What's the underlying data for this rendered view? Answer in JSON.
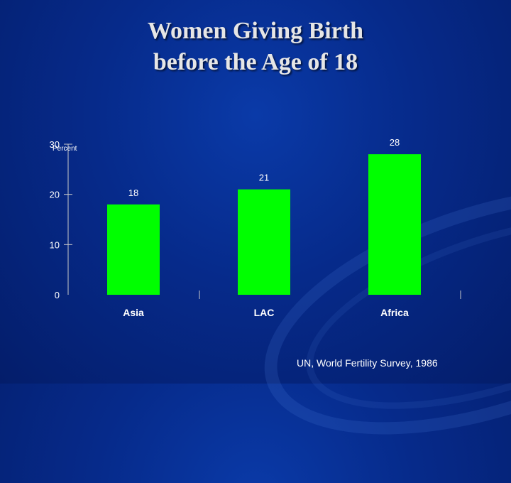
{
  "slide": {
    "title_line1": "Women Giving Birth",
    "title_line2": "before the Age of 18",
    "source": "UN, World Fertility Survey, 1986"
  },
  "colors": {
    "bar": "#00ff00",
    "text": "#ffffff",
    "axis": "#c8c8c8"
  },
  "chart_data": {
    "type": "bar",
    "title": "Women Giving Birth before the Age of 18",
    "ylabel": "Percent",
    "xlabel": "",
    "categories": [
      "Asia",
      "LAC",
      "Africa"
    ],
    "values": [
      18,
      21,
      28
    ],
    "data_labels": [
      "18",
      "21",
      "28"
    ],
    "ylim": [
      0,
      30
    ],
    "yticks": [
      0,
      10,
      20,
      30
    ],
    "ytick_labels": [
      "0",
      "10",
      "20",
      "30"
    ],
    "grid": false
  }
}
